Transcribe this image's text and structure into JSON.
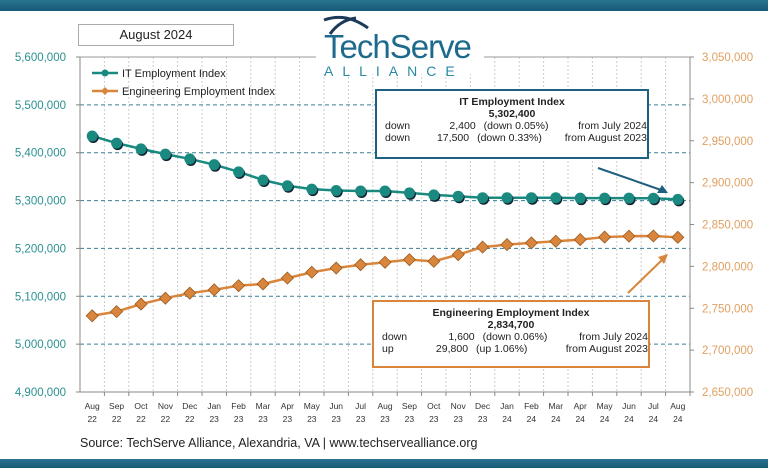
{
  "date_label": "August 2024",
  "logo": {
    "line1": "TechServe",
    "line2": "ALLIANCE"
  },
  "source": "Source: TechServe Alliance, Alexandria, VA | www.techservealliance.org",
  "colors": {
    "it": "#1a8a80",
    "eng": "#d9853b",
    "bar": "#1a5f7a"
  },
  "it_box": {
    "title": "IT Employment Index",
    "value": "5,302,400",
    "rows": [
      {
        "dir": "down",
        "amount": "2,400",
        "pct": "(down 0.05%)",
        "from": "from  July 2024"
      },
      {
        "dir": "down",
        "amount": "17,500",
        "pct": "(down 0.33%)",
        "from": "from August 2023"
      }
    ]
  },
  "eng_box": {
    "title": "Engineering Employment Index",
    "value": "2,834,700",
    "rows": [
      {
        "dir": "down",
        "amount": "1,600",
        "pct": "(down 0.06%)",
        "from": "from  July 2024"
      },
      {
        "dir": "up",
        "amount": "29,800",
        "pct": "(up 1.06%)",
        "from": "from  August 2023"
      }
    ]
  },
  "chart_data": {
    "type": "line",
    "categories": [
      [
        "Aug",
        "22"
      ],
      [
        "Sep",
        "22"
      ],
      [
        "Oct",
        "22"
      ],
      [
        "Nov",
        "22"
      ],
      [
        "Dec",
        "22"
      ],
      [
        "Jan",
        "23"
      ],
      [
        "Feb",
        "23"
      ],
      [
        "Mar",
        "23"
      ],
      [
        "Apr",
        "23"
      ],
      [
        "May",
        "23"
      ],
      [
        "Jun",
        "23"
      ],
      [
        "Jul",
        "23"
      ],
      [
        "Aug",
        "23"
      ],
      [
        "Sep",
        "23"
      ],
      [
        "Oct",
        "23"
      ],
      [
        "Nov",
        "23"
      ],
      [
        "Dec",
        "23"
      ],
      [
        "Jan",
        "24"
      ],
      [
        "Feb",
        "24"
      ],
      [
        "Mar",
        "24"
      ],
      [
        "Apr",
        "24"
      ],
      [
        "May",
        "24"
      ],
      [
        "Jun",
        "24"
      ],
      [
        "Jul",
        "24"
      ],
      [
        "Aug",
        "24"
      ]
    ],
    "series": [
      {
        "name": "IT Employment Index",
        "axis": "left",
        "marker": "circle",
        "values": [
          5435000,
          5420000,
          5408000,
          5397000,
          5387000,
          5375000,
          5360000,
          5343000,
          5331000,
          5324000,
          5321000,
          5320000,
          5319900,
          5316000,
          5312000,
          5309000,
          5306000,
          5306000,
          5306000,
          5306000,
          5305000,
          5305000,
          5305000,
          5304800,
          5302400
        ]
      },
      {
        "name": "Engineering Employment Index",
        "axis": "right",
        "marker": "diamond",
        "values": [
          2741000,
          2746000,
          2755000,
          2762000,
          2768000,
          2772000,
          2777000,
          2779000,
          2786000,
          2793000,
          2798000,
          2802000,
          2804900,
          2808000,
          2806000,
          2814000,
          2823000,
          2826000,
          2828000,
          2830000,
          2832000,
          2835000,
          2836000,
          2836300,
          2834700
        ]
      }
    ],
    "left_axis": {
      "ylim": [
        4900000,
        5600000
      ],
      "ticks": [
        "4,900,000",
        "5,000,000",
        "5,100,000",
        "5,200,000",
        "5,300,000",
        "5,400,000",
        "5,500,000",
        "5,600,000"
      ]
    },
    "right_axis": {
      "ylim": [
        2650000,
        3050000
      ],
      "ticks": [
        "2,650,000",
        "2,700,000",
        "2,750,000",
        "2,800,000",
        "2,850,000",
        "2,900,000",
        "2,950,000",
        "3,000,000",
        "3,050,000"
      ]
    },
    "grid": true,
    "legend": "top-left"
  }
}
